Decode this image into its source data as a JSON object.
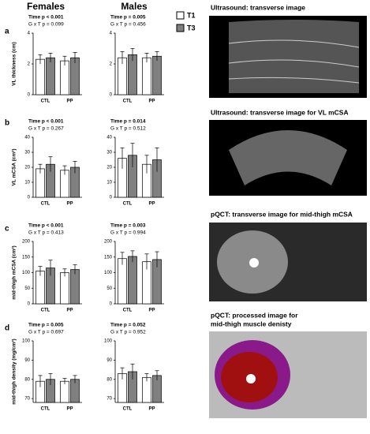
{
  "headers": [
    "Females",
    "Males"
  ],
  "panels": [
    "a",
    "b",
    "c",
    "d"
  ],
  "chart_data": [
    {
      "type": "bar",
      "annotations": [
        "Time p < 0.001",
        "G x T p = 0.099"
      ],
      "ylabel": "VL thickness (cm)",
      "categories": [
        "CTL",
        "PP"
      ],
      "ylim": [
        0,
        4
      ],
      "yticks": [
        0,
        2,
        4
      ],
      "series": [
        {
          "name": "T1",
          "color": "#ffffff",
          "values": [
            2.3,
            2.2
          ],
          "errors": [
            0.3,
            0.3
          ]
        },
        {
          "name": "T3",
          "color": "#808080",
          "values": [
            2.4,
            2.4
          ],
          "errors": [
            0.3,
            0.35
          ]
        }
      ]
    },
    {
      "type": "bar",
      "annotations": [
        "Time p = 0.005",
        "G x T p = 0.456"
      ],
      "categories": [
        "CTL",
        "PP"
      ],
      "ylim": [
        0,
        4
      ],
      "yticks": [
        0,
        2,
        4
      ],
      "series": [
        {
          "name": "T1",
          "color": "#ffffff",
          "values": [
            2.4,
            2.4
          ],
          "errors": [
            0.4,
            0.3
          ]
        },
        {
          "name": "T3",
          "color": "#808080",
          "values": [
            2.6,
            2.5
          ],
          "errors": [
            0.4,
            0.3
          ]
        }
      ]
    },
    {
      "type": "bar",
      "annotations": [
        "Time p < 0.001",
        "G x T p = 0.267"
      ],
      "ylabel": "VL mCSA (cm²)",
      "categories": [
        "CTL",
        "PP"
      ],
      "ylim": [
        0,
        40
      ],
      "yticks": [
        0,
        10,
        20,
        30,
        40
      ],
      "series": [
        {
          "name": "T1",
          "color": "#ffffff",
          "values": [
            19,
            18
          ],
          "errors": [
            3,
            3
          ]
        },
        {
          "name": "T3",
          "color": "#808080",
          "values": [
            22,
            20
          ],
          "errors": [
            5,
            4
          ]
        }
      ]
    },
    {
      "type": "bar",
      "annotations": [
        "Time p = 0.014",
        "G x T p = 0.512"
      ],
      "categories": [
        "CTL",
        "PP"
      ],
      "ylim": [
        0,
        40
      ],
      "yticks": [
        0,
        10,
        20,
        30,
        40
      ],
      "series": [
        {
          "name": "T1",
          "color": "#ffffff",
          "values": [
            26,
            22
          ],
          "errors": [
            7,
            6
          ]
        },
        {
          "name": "T3",
          "color": "#808080",
          "values": [
            28,
            25
          ],
          "errors": [
            8,
            8
          ]
        }
      ]
    },
    {
      "type": "bar",
      "annotations": [
        "Time p < 0.001",
        "G x T p = 0.413"
      ],
      "ylabel": "mid-thigh mCSA (cm²)",
      "categories": [
        "CTL",
        "PP"
      ],
      "ylim": [
        0,
        200
      ],
      "yticks": [
        0,
        50,
        100,
        150,
        200
      ],
      "series": [
        {
          "name": "T1",
          "color": "#ffffff",
          "values": [
            105,
            100
          ],
          "errors": [
            15,
            12
          ]
        },
        {
          "name": "T3",
          "color": "#808080",
          "values": [
            115,
            110
          ],
          "errors": [
            25,
            15
          ]
        }
      ]
    },
    {
      "type": "bar",
      "annotations": [
        "Time p = 0.003",
        "G x T p = 0.994"
      ],
      "categories": [
        "CTL",
        "PP"
      ],
      "ylim": [
        0,
        200
      ],
      "yticks": [
        0,
        50,
        100,
        150,
        200
      ],
      "series": [
        {
          "name": "T1",
          "color": "#ffffff",
          "values": [
            145,
            135
          ],
          "errors": [
            20,
            25
          ]
        },
        {
          "name": "T3",
          "color": "#808080",
          "values": [
            152,
            142
          ],
          "errors": [
            18,
            25
          ]
        }
      ]
    },
    {
      "type": "bar",
      "annotations": [
        "Time p = 0.005",
        "G x T p = 0.697"
      ],
      "ylabel": "mid-thigh density (mg/cm³)",
      "categories": [
        "CTL",
        "PP"
      ],
      "ylim": [
        68,
        100
      ],
      "yticks": [
        70,
        80,
        90,
        100
      ],
      "series": [
        {
          "name": "T1",
          "color": "#ffffff",
          "values": [
            79,
            79
          ],
          "errors": [
            3,
            1.5
          ]
        },
        {
          "name": "T3",
          "color": "#808080",
          "values": [
            80,
            80
          ],
          "errors": [
            3,
            2
          ]
        }
      ]
    },
    {
      "type": "bar",
      "annotations": [
        "Time p = 0.052",
        "G x T p = 0.952"
      ],
      "categories": [
        "CTL",
        "PP"
      ],
      "ylim": [
        68,
        100
      ],
      "yticks": [
        70,
        80,
        90,
        100
      ],
      "series": [
        {
          "name": "T1",
          "color": "#ffffff",
          "values": [
            83,
            81
          ],
          "errors": [
            3,
            2
          ]
        },
        {
          "name": "T3",
          "color": "#808080",
          "values": [
            84,
            82
          ],
          "errors": [
            4,
            2.5
          ]
        }
      ]
    }
  ],
  "images": [
    {
      "caption": [
        "Ultrasound: transverse image"
      ]
    },
    {
      "caption": [
        "Ultrasound: transverse image for VL mCSA"
      ]
    },
    {
      "caption": [
        "pQCT: transverse image for mid-thigh mCSA"
      ]
    },
    {
      "caption": [
        "pQCT: processed image for",
        "mid-thigh muscle denisty"
      ]
    }
  ]
}
